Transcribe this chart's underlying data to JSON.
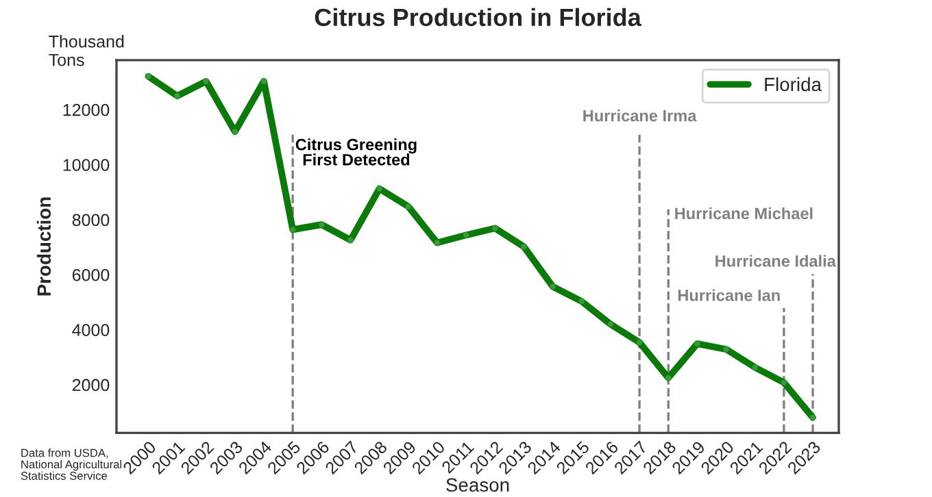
{
  "chart_data": {
    "type": "line",
    "title": "Citrus Production in Florida",
    "xlabel": "Season",
    "ylabel": "Production",
    "x": [
      2000,
      2001,
      2002,
      2003,
      2004,
      2005,
      2006,
      2007,
      2008,
      2009,
      2010,
      2011,
      2012,
      2013,
      2014,
      2015,
      2016,
      2017,
      2018,
      2019,
      2020,
      2021,
      2022,
      2023
    ],
    "series": [
      {
        "name": "Florida",
        "color": "#0b7a0b",
        "values": [
          13210,
          12500,
          13030,
          11200,
          13030,
          7640,
          7820,
          7260,
          9130,
          8480,
          7160,
          7440,
          7690,
          7020,
          5570,
          5030,
          4200,
          3540,
          2250,
          3490,
          3290,
          2630,
          2080,
          810
        ]
      }
    ],
    "xlim": [
      1998.9,
      2023.9
    ],
    "xticks": [
      2000,
      2001,
      2002,
      2003,
      2004,
      2005,
      2006,
      2007,
      2008,
      2009,
      2010,
      2011,
      2012,
      2013,
      2014,
      2015,
      2016,
      2017,
      2018,
      2019,
      2020,
      2021,
      2022,
      2023
    ],
    "ylim": [
      250,
      13800
    ],
    "yticks": [
      2000,
      4000,
      6000,
      8000,
      10000,
      12000
    ],
    "ref_lines": [
      {
        "axis": "x",
        "value": 2005,
        "label": "Citrus Greening\nFirst Detected",
        "color": "#808080",
        "line_style": "dashed"
      },
      {
        "axis": "x",
        "value": 2017,
        "label": "Hurricane Irma",
        "color": "#808080",
        "line_style": "dashed"
      },
      {
        "axis": "x",
        "value": 2018,
        "label": "Hurricane Michael",
        "color": "#808080",
        "line_style": "dashed"
      },
      {
        "axis": "x",
        "value": 2022,
        "label": "Hurricane Ian",
        "color": "#808080",
        "line_style": "dashed"
      },
      {
        "axis": "x",
        "value": 2023,
        "label": "Hurricane Idalia",
        "color": "#808080",
        "line_style": "dashed"
      }
    ],
    "annotations": [
      "Thousand\nTons",
      "Data from USDA,\nNational Agricultural\nStatistics Service"
    ],
    "legend": "top right",
    "grid": false,
    "marker": "circle",
    "line_style": "solid"
  }
}
